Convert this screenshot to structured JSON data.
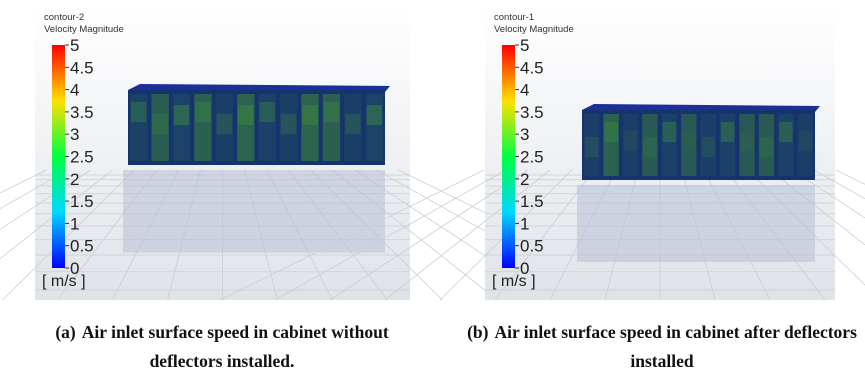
{
  "panels": [
    {
      "contour": "contour-2",
      "quantity": "Velocity Magnitude",
      "colorbar": {
        "ticks": [
          5,
          4.5,
          4,
          3.5,
          3,
          2.5,
          2,
          1.5,
          1,
          0.5,
          0
        ],
        "unit": "[ m/s ]"
      },
      "caption_tag": "(a)",
      "caption": "Air inlet surface speed in cabinet without deflectors installed."
    },
    {
      "contour": "contour-1",
      "quantity": "Velocity Magnitude",
      "colorbar": {
        "ticks": [
          5,
          4.5,
          4,
          3.5,
          3,
          2.5,
          2,
          1.5,
          1,
          0.5,
          0
        ],
        "unit": "[ m/s ]"
      },
      "caption_tag": "(b)",
      "caption": "Air inlet surface speed in cabinet after deflectors installed"
    }
  ]
}
